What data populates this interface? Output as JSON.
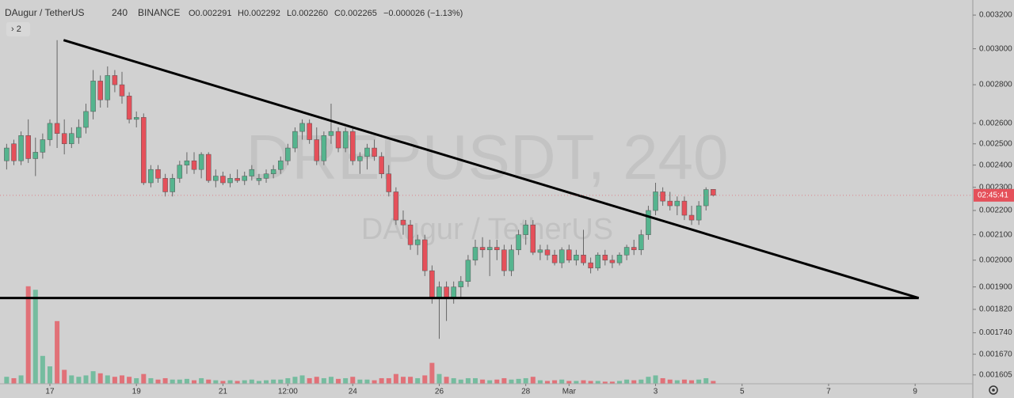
{
  "chart_data": {
    "type": "candlestick",
    "header": {
      "symbol": "DAugur / TetherUS",
      "interval": "240",
      "exchange": "BINANCE",
      "open": "O0.002291",
      "high": "H0.002292",
      "low": "L0.002260",
      "close": "C0.002265",
      "change": "−0.000026 (−1.13%)"
    },
    "indicator_toggle": "› 2",
    "watermark": "DREPUSDT, 240",
    "watermark_subtitle": "DAugur / TetherUS",
    "countdown_label": "02:45:41",
    "log_scale": true,
    "up_color": "#55b48e",
    "down_color": "#e5505a",
    "x": [
      -6,
      -5,
      -4,
      -3,
      -2,
      -1,
      0,
      1,
      2,
      3,
      4,
      5,
      6,
      7,
      8,
      9,
      10,
      11,
      12,
      13,
      14,
      15,
      16,
      17,
      18,
      19,
      20,
      21,
      22,
      23,
      24,
      25,
      26,
      27,
      28,
      29,
      30,
      31,
      32,
      33,
      34,
      35,
      36,
      37,
      38,
      39,
      40,
      41,
      42,
      43,
      44,
      45,
      46,
      47,
      48,
      49,
      50,
      51,
      52,
      53,
      54,
      55,
      56,
      57,
      58,
      59,
      60,
      61,
      62,
      63,
      64,
      65,
      66,
      67,
      68,
      69,
      70,
      71,
      72,
      73,
      74,
      75,
      76,
      77,
      78,
      79,
      80,
      81,
      82,
      83,
      84,
      85,
      86,
      87,
      88,
      89,
      90,
      91,
      92
    ],
    "open": [
      0.00242,
      0.0025,
      0.00242,
      0.00254,
      0.00243,
      0.00246,
      0.00252,
      0.0026,
      0.00255,
      0.0025,
      0.00253,
      0.00258,
      0.00266,
      0.00282,
      0.00272,
      0.00285,
      0.0028,
      0.00274,
      0.00262,
      0.00263,
      0.00232,
      0.00238,
      0.00234,
      0.00228,
      0.00234,
      0.0024,
      0.00242,
      0.00238,
      0.00245,
      0.00233,
      0.00235,
      0.00232,
      0.00234,
      0.00233,
      0.00235,
      0.00233,
      0.00234,
      0.00236,
      0.00238,
      0.00242,
      0.00248,
      0.00256,
      0.0026,
      0.00252,
      0.00242,
      0.00254,
      0.00256,
      0.00248,
      0.00256,
      0.00242,
      0.00244,
      0.00248,
      0.00244,
      0.00236,
      0.00228,
      0.00216,
      0.00214,
      0.00206,
      0.00208,
      0.00196,
      0.00186,
      0.0019,
      0.00186,
      0.0019,
      0.00192,
      0.002,
      0.00205,
      0.00204,
      0.00205,
      0.00204,
      0.00196,
      0.00204,
      0.0021,
      0.00214,
      0.00203,
      0.00204,
      0.00202,
      0.00199,
      0.00204,
      0.002,
      0.00202,
      0.00199,
      0.00197,
      0.00202,
      0.002,
      0.00199,
      0.00202,
      0.00205,
      0.00204,
      0.0021,
      0.0022,
      0.00228,
      0.00224,
      0.00222,
      0.00224,
      0.00218,
      0.00216,
      0.00222,
      0.002291
    ],
    "high": [
      0.0025,
      0.00252,
      0.00256,
      0.00262,
      0.00253,
      0.00255,
      0.00262,
      0.00305,
      0.00262,
      0.00258,
      0.00262,
      0.0027,
      0.00288,
      0.00285,
      0.0029,
      0.00288,
      0.00287,
      0.00276,
      0.00266,
      0.00265,
      0.0024,
      0.0024,
      0.00236,
      0.00236,
      0.00242,
      0.00246,
      0.00246,
      0.00246,
      0.00246,
      0.00238,
      0.00237,
      0.00236,
      0.00238,
      0.00237,
      0.0024,
      0.00236,
      0.00238,
      0.0024,
      0.00244,
      0.0025,
      0.00258,
      0.00262,
      0.00262,
      0.00258,
      0.00256,
      0.0027,
      0.00258,
      0.00258,
      0.00258,
      0.00246,
      0.0025,
      0.00252,
      0.00246,
      0.0024,
      0.0023,
      0.0022,
      0.00216,
      0.0021,
      0.0021,
      0.00198,
      0.00192,
      0.00192,
      0.00192,
      0.00194,
      0.00202,
      0.00208,
      0.00209,
      0.00208,
      0.00208,
      0.00206,
      0.00206,
      0.00212,
      0.00216,
      0.00216,
      0.00206,
      0.00206,
      0.00204,
      0.00205,
      0.00206,
      0.00204,
      0.00212,
      0.00201,
      0.00203,
      0.00204,
      0.00202,
      0.00203,
      0.00206,
      0.00208,
      0.00212,
      0.00222,
      0.00232,
      0.0023,
      0.00228,
      0.00226,
      0.00226,
      0.00222,
      0.00224,
      0.0023,
      0.002292
    ],
    "low": [
      0.00238,
      0.0024,
      0.0024,
      0.00241,
      0.00235,
      0.00243,
      0.00249,
      0.00248,
      0.00245,
      0.00248,
      0.0025,
      0.00255,
      0.00262,
      0.00268,
      0.00268,
      0.00276,
      0.0027,
      0.0026,
      0.00258,
      0.00231,
      0.0023,
      0.00232,
      0.00226,
      0.00226,
      0.00232,
      0.00236,
      0.00236,
      0.00234,
      0.00232,
      0.0023,
      0.00231,
      0.0023,
      0.00232,
      0.00231,
      0.00233,
      0.00231,
      0.00232,
      0.00234,
      0.00236,
      0.0024,
      0.00246,
      0.00252,
      0.0025,
      0.0024,
      0.0024,
      0.0025,
      0.00246,
      0.00246,
      0.0024,
      0.00236,
      0.00238,
      0.00242,
      0.00234,
      0.00226,
      0.00214,
      0.0021,
      0.00204,
      0.00202,
      0.00194,
      0.00184,
      0.00172,
      0.00178,
      0.00184,
      0.00186,
      0.0019,
      0.00198,
      0.00201,
      0.00194,
      0.002,
      0.00194,
      0.00194,
      0.00202,
      0.00206,
      0.00202,
      0.002,
      0.002,
      0.00198,
      0.00197,
      0.00199,
      0.00198,
      0.00198,
      0.00195,
      0.00196,
      0.00198,
      0.00197,
      0.00198,
      0.002,
      0.00202,
      0.00202,
      0.00208,
      0.00218,
      0.00222,
      0.0022,
      0.00218,
      0.00216,
      0.00214,
      0.00214,
      0.0022,
      0.00226
    ],
    "close": [
      0.00248,
      0.00242,
      0.00254,
      0.00243,
      0.00246,
      0.00252,
      0.0026,
      0.00255,
      0.0025,
      0.00255,
      0.00258,
      0.00266,
      0.00282,
      0.00272,
      0.00285,
      0.0028,
      0.00274,
      0.00262,
      0.00263,
      0.00232,
      0.00238,
      0.00234,
      0.00228,
      0.00234,
      0.0024,
      0.00242,
      0.00238,
      0.00245,
      0.00233,
      0.00235,
      0.00232,
      0.00234,
      0.00233,
      0.00235,
      0.00238,
      0.00234,
      0.00236,
      0.00238,
      0.00242,
      0.00248,
      0.00256,
      0.0026,
      0.00252,
      0.00242,
      0.00254,
      0.00256,
      0.00248,
      0.00256,
      0.00242,
      0.00244,
      0.00248,
      0.00244,
      0.00236,
      0.00228,
      0.00216,
      0.00214,
      0.00206,
      0.00208,
      0.00196,
      0.00186,
      0.0019,
      0.00186,
      0.0019,
      0.00192,
      0.002,
      0.00205,
      0.00204,
      0.00205,
      0.00204,
      0.00196,
      0.00204,
      0.0021,
      0.00214,
      0.00203,
      0.00204,
      0.00202,
      0.00199,
      0.00204,
      0.002,
      0.00202,
      0.00199,
      0.00197,
      0.00202,
      0.002,
      0.00199,
      0.00202,
      0.00205,
      0.00204,
      0.0021,
      0.0022,
      0.00228,
      0.00224,
      0.00222,
      0.00224,
      0.00218,
      0.00216,
      0.00222,
      0.00229,
      0.002265
    ],
    "volume": [
      10,
      8,
      12,
      140,
      135,
      40,
      25,
      90,
      20,
      12,
      10,
      12,
      18,
      15,
      12,
      10,
      12,
      10,
      8,
      14,
      8,
      6,
      8,
      6,
      6,
      7,
      5,
      8,
      6,
      5,
      4,
      5,
      4,
      5,
      6,
      4,
      5,
      6,
      6,
      8,
      10,
      12,
      8,
      10,
      8,
      10,
      7,
      8,
      10,
      6,
      6,
      5,
      8,
      8,
      14,
      10,
      10,
      8,
      12,
      30,
      14,
      10,
      8,
      6,
      8,
      8,
      6,
      5,
      6,
      8,
      6,
      7,
      8,
      10,
      5,
      4,
      5,
      6,
      4,
      4,
      5,
      4,
      4,
      3,
      3,
      4,
      6,
      5,
      6,
      10,
      12,
      8,
      6,
      5,
      6,
      5,
      6,
      8,
      4
    ],
    "trendlines": [
      {
        "points": [
          [
            1.9,
            0.00305
          ],
          [
            120.5,
            0.00186
          ]
        ]
      },
      {
        "points": [
          [
            -7,
            0.00186
          ],
          [
            120.5,
            0.00186
          ]
        ]
      }
    ],
    "xlim": [
      -6.92,
      128
    ],
    "xticks": [
      {
        "value": 0,
        "label": "17"
      },
      {
        "value": 12,
        "label": "19"
      },
      {
        "value": 24,
        "label": "21"
      },
      {
        "value": 33,
        "label": "12:00"
      },
      {
        "value": 42,
        "label": "24"
      },
      {
        "value": 54,
        "label": "26"
      },
      {
        "value": 66,
        "label": "28"
      },
      {
        "value": 72,
        "label": "Mar"
      },
      {
        "value": 84,
        "label": "3"
      },
      {
        "value": 96,
        "label": "5"
      },
      {
        "value": 108,
        "label": "7"
      },
      {
        "value": 120,
        "label": "9"
      }
    ],
    "ylim": [
      0.001578,
      0.003294
    ],
    "yticks": [
      {
        "value": 0.0032,
        "label": "0.003200"
      },
      {
        "value": 0.003,
        "label": "0.003000"
      },
      {
        "value": 0.0028,
        "label": "0.002800"
      },
      {
        "value": 0.0026,
        "label": "0.002600"
      },
      {
        "value": 0.0025,
        "label": "0.002500"
      },
      {
        "value": 0.0024,
        "label": "0.002400"
      },
      {
        "value": 0.0023,
        "label": "0.002300"
      },
      {
        "value": 0.0022,
        "label": "0.002200"
      },
      {
        "value": 0.0021,
        "label": "0.002100"
      },
      {
        "value": 0.002,
        "label": "0.002000"
      },
      {
        "value": 0.0019,
        "label": "0.001900"
      },
      {
        "value": 0.00182,
        "label": "0.001820"
      },
      {
        "value": 0.00174,
        "label": "0.001740"
      },
      {
        "value": 0.00167,
        "label": "0.001670"
      },
      {
        "value": 0.001605,
        "label": "0.001605"
      }
    ]
  }
}
